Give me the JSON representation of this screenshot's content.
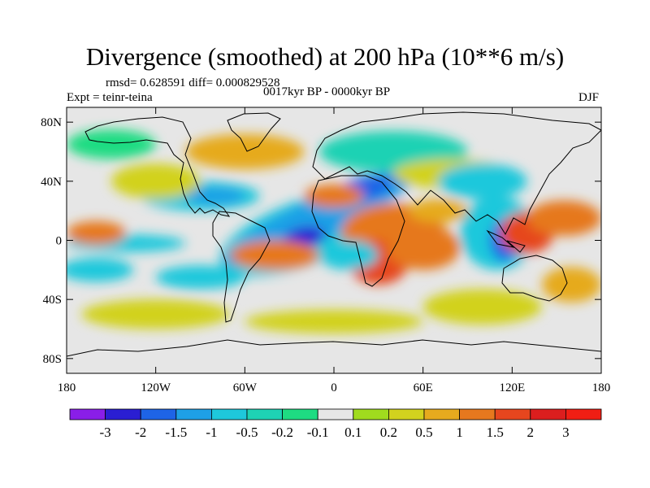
{
  "chart_data": {
    "type": "heatmap",
    "title": "Divergence (smoothed) at 200 hPa (10**6 m/s)",
    "stats_text": "rmsd= 0.628591 diff= 0.000829528",
    "period_text": "0017kyr BP - 0000kyr BP",
    "experiment_text": "Expt = teinr-teina",
    "season": "DJF",
    "y_ticks": [
      {
        "value": 80,
        "label": "80N"
      },
      {
        "value": 40,
        "label": "40N"
      },
      {
        "value": 0,
        "label": "0"
      },
      {
        "value": -40,
        "label": "40S"
      },
      {
        "value": -80,
        "label": "80S"
      }
    ],
    "x_ticks": [
      {
        "value": -180,
        "label": "180"
      },
      {
        "value": -120,
        "label": "120W"
      },
      {
        "value": -60,
        "label": "60W"
      },
      {
        "value": 0,
        "label": "0"
      },
      {
        "value": 60,
        "label": "60E"
      },
      {
        "value": 120,
        "label": "120E"
      },
      {
        "value": 180,
        "label": "180"
      }
    ],
    "xlim": [
      -180,
      180
    ],
    "ylim": [
      -90,
      90
    ],
    "colorbar": {
      "levels": [
        "-3",
        "-2",
        "-1.5",
        "-1",
        "-0.5",
        "-0.2",
        "-0.1",
        "0.1",
        "0.2",
        "0.5",
        "1",
        "1.5",
        "2",
        "3"
      ],
      "colors": [
        "#8a1ee8",
        "#2a1ed2",
        "#1e64e6",
        "#1ea0e6",
        "#1ec8dc",
        "#1ed2b4",
        "#1edc82",
        "#e6e6e6",
        "#a0dc1e",
        "#d2d21e",
        "#e6aa1e",
        "#e6781e",
        "#e6461e",
        "#dc1e1e",
        "#f01e14"
      ]
    }
  }
}
